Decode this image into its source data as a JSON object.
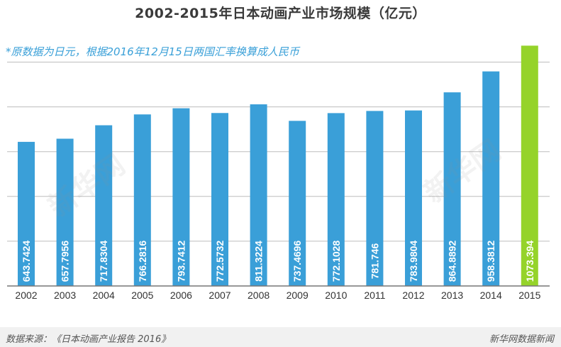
{
  "title": "2002-2015年日本动画产业市场规模（亿元）",
  "note": "*原数据为日元，根据2016年12月15日两国汇率换算成人民币",
  "source": "数据来源：《日本动画产业报告 2016》",
  "brand": "新华网数据新闻",
  "watermark": "新华网",
  "colors": {
    "bar": "#3a9fd8",
    "highlight": "#95d32a",
    "grid": "#bdbdbd",
    "axis": "#777777"
  },
  "chart_data": {
    "type": "bar",
    "categories": [
      "2002",
      "2003",
      "2004",
      "2005",
      "2006",
      "2007",
      "2008",
      "2009",
      "2010",
      "2011",
      "2012",
      "2013",
      "2014",
      "2015"
    ],
    "values": [
      643.7424,
      657.7956,
      717.8304,
      766.2816,
      793.7412,
      772.5732,
      811.3224,
      737.4696,
      772.1028,
      781.746,
      783.9804,
      864.8892,
      958.3812,
      1073.394
    ],
    "value_labels": [
      "643.7424",
      "657.7956",
      "717.8304",
      "766.2816",
      "793.7412",
      "772.5732",
      "811.3224",
      "737.4696",
      "772.1028",
      "781.746",
      "783.9804",
      "864.8892",
      "958.3812",
      "1073.394"
    ],
    "highlight_index": 13,
    "title": "2002-2015年日本动画产业市场规模（亿元）",
    "xlabel": "",
    "ylabel": "",
    "ylim": [
      0,
      1100
    ],
    "grid": true
  }
}
